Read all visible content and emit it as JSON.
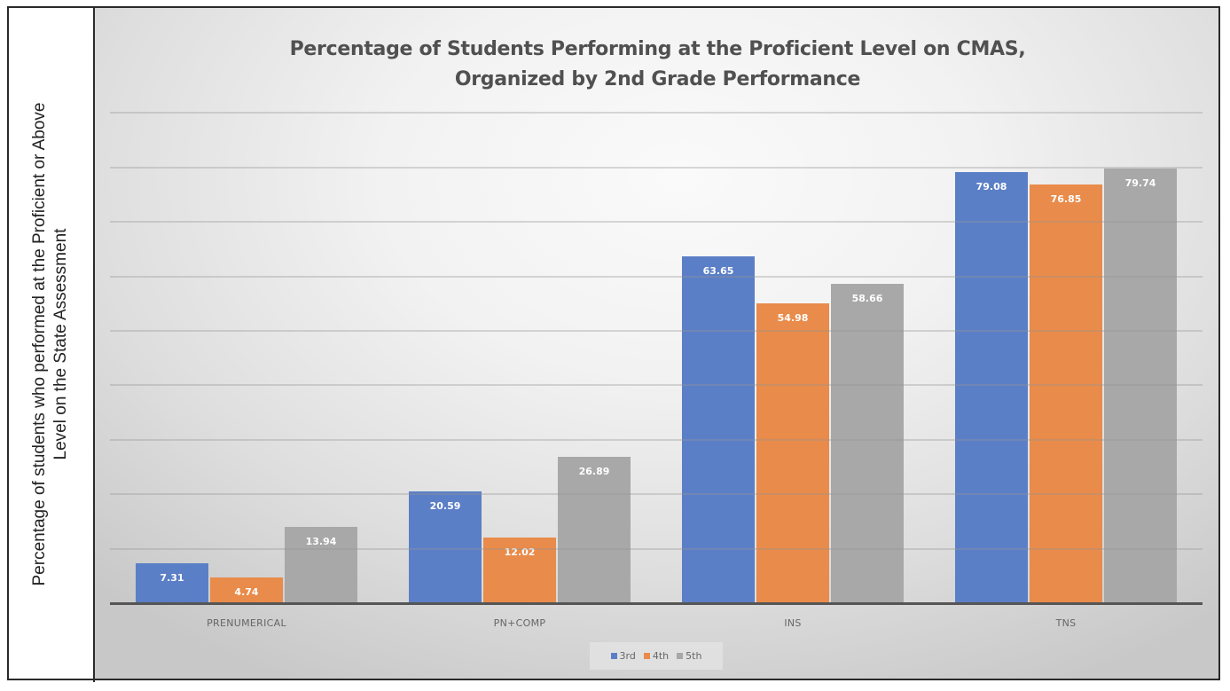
{
  "chart_data": {
    "type": "bar",
    "title": "Percentage of Students Performing at the Proficient Level on CMAS, Organized by 2nd Grade Performance",
    "title_lines": [
      "Percentage of Students Performing at the Proficient Level on CMAS,",
      "Organized by 2nd Grade Performance"
    ],
    "xlabel": "",
    "ylabel": "Percentage of students who performed at the Proficient or Above Level on the State Assessment",
    "ylabel_lines": [
      "Percentage of students who performed at the Proficient or Above",
      "Level on the State Assessment"
    ],
    "categories": [
      "PRENUMERICAL",
      "PN+COMP",
      "INS",
      "TNS"
    ],
    "series": [
      {
        "name": "3rd",
        "color": "#5b7fc7",
        "values": [
          7.31,
          20.59,
          63.65,
          79.08
        ]
      },
      {
        "name": "4th",
        "color": "#e98b4a",
        "values": [
          4.74,
          12.02,
          54.98,
          76.85
        ]
      },
      {
        "name": "5th",
        "color": "#a8a8a8",
        "values": [
          13.94,
          26.89,
          58.66,
          79.74
        ]
      }
    ],
    "value_labels": [
      [
        "7.31",
        "20.59",
        "63.65",
        "79.08"
      ],
      [
        "4.74",
        "12.02",
        "54.98",
        "76.85"
      ],
      [
        "13.94",
        "26.89",
        "58.66",
        "79.74"
      ]
    ],
    "ylim": [
      0,
      90
    ],
    "y_gridline_step": 10,
    "y_tick_labels_visible": false,
    "grid": true,
    "legend_position": "bottom",
    "data_labels": "inside-end"
  }
}
